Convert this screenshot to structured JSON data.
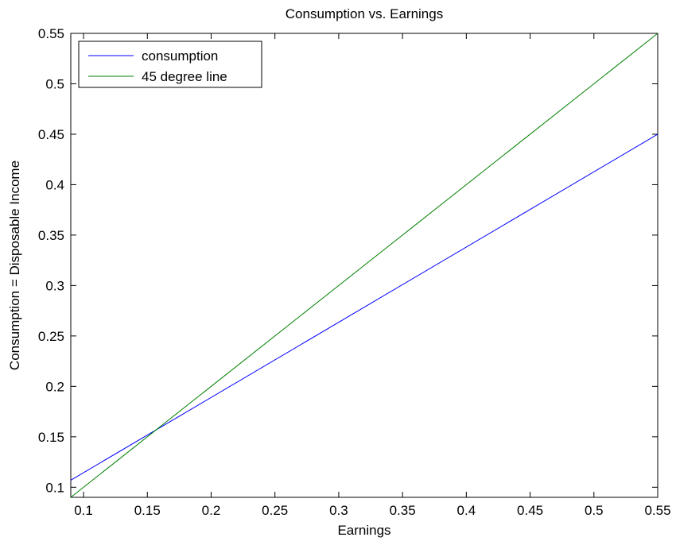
{
  "chart_data": {
    "type": "line",
    "title": "Consumption vs. Earnings",
    "xlabel": "Earnings",
    "ylabel": "Consumption = Disposable Income",
    "xlim": [
      0.09,
      0.55
    ],
    "ylim": [
      0.09,
      0.55
    ],
    "xticks": [
      0.1,
      0.15,
      0.2,
      0.25,
      0.3,
      0.35,
      0.4,
      0.45,
      0.5,
      0.55
    ],
    "yticks": [
      0.1,
      0.15,
      0.2,
      0.25,
      0.3,
      0.35,
      0.4,
      0.45,
      0.5,
      0.55
    ],
    "xtick_labels": [
      "0.1",
      "0.15",
      "0.2",
      "0.25",
      "0.3",
      "0.35",
      "0.4",
      "0.45",
      "0.5",
      "0.55"
    ],
    "ytick_labels": [
      "0.1",
      "0.15",
      "0.2",
      "0.25",
      "0.3",
      "0.35",
      "0.4",
      "0.45",
      "0.5",
      "0.55"
    ],
    "grid": false,
    "legend_position": "top-left",
    "series": [
      {
        "name": "consumption",
        "color": "#0000ff",
        "x": [
          0.09,
          0.55
        ],
        "y": [
          0.107,
          0.45
        ]
      },
      {
        "name": "45 degree line",
        "color": "#008000",
        "x": [
          0.09,
          0.55
        ],
        "y": [
          0.09,
          0.55
        ]
      }
    ]
  }
}
